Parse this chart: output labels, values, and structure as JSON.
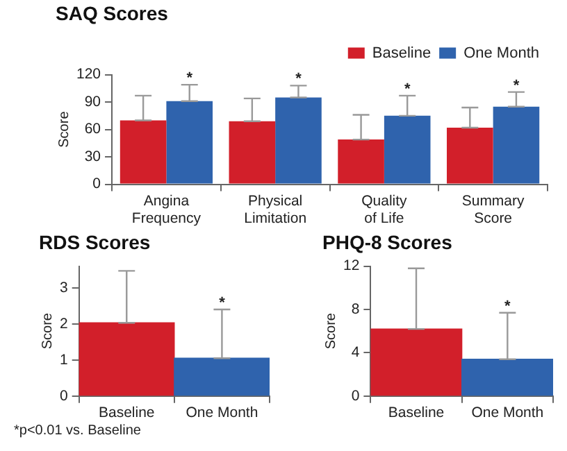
{
  "chart_data": [
    {
      "type": "bar",
      "title": "SAQ Scores",
      "ylabel": "Score",
      "categories": [
        "Angina Frequency",
        "Physical Limitation",
        "Quality of Life",
        "Summary Score"
      ],
      "series": [
        {
          "name": "Baseline",
          "color": "#d21f2a",
          "values": [
            70,
            69,
            49,
            62
          ],
          "errors": [
            [
              70,
              97
            ],
            [
              69,
              94
            ],
            [
              49,
              76
            ],
            [
              62,
              84
            ]
          ]
        },
        {
          "name": "One Month",
          "color": "#2f63ad",
          "values": [
            91,
            95,
            75,
            85
          ],
          "errors": [
            [
              91,
              109
            ],
            [
              95,
              108
            ],
            [
              75,
              97
            ],
            [
              85,
              101
            ]
          ]
        }
      ],
      "ylim": [
        0,
        120
      ],
      "yticks": [
        0,
        30,
        60,
        90,
        120
      ],
      "grid": false,
      "legend": "top right",
      "annotations": [
        "*",
        "*",
        "*",
        "*"
      ]
    },
    {
      "type": "bar",
      "title": "RDS Scores",
      "ylabel": "Score",
      "categories": [
        "Baseline",
        "One Month"
      ],
      "values": [
        2.03,
        1.05
      ],
      "colors": [
        "#d21f2a",
        "#2f63ad"
      ],
      "errors": [
        [
          2.03,
          3.47
        ],
        [
          1.05,
          2.4
        ]
      ],
      "ylim": [
        0,
        3.6
      ],
      "yticks": [
        0,
        1,
        2,
        3
      ],
      "grid": false,
      "annotations": [
        {
          "text": "*",
          "x": "One Month",
          "y": 2.4
        },
        "*p<0.01 vs. Baseline"
      ]
    },
    {
      "type": "bar",
      "title": "PHQ-8 Scores",
      "ylabel": "Score",
      "categories": [
        "Baseline",
        "One Month"
      ],
      "values": [
        6.2,
        3.4
      ],
      "colors": [
        "#d21f2a",
        "#2f63ad"
      ],
      "errors": [
        [
          6.2,
          11.8
        ],
        [
          3.4,
          7.7
        ]
      ],
      "ylim": [
        0,
        12
      ],
      "yticks": [
        0,
        4,
        8,
        12
      ],
      "grid": false,
      "annotations": [
        {
          "text": "*",
          "x": "One Month",
          "y": 7.7
        }
      ]
    }
  ]
}
